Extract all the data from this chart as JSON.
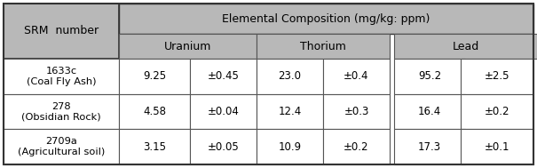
{
  "rows": [
    {
      "srm": "1633c\n(Coal Fly Ash)",
      "uranium": "9.25",
      "u_unc": "±0.45",
      "thorium": "23.0",
      "th_unc": "±0.4",
      "lead": "95.2",
      "pb_unc": "±2.5"
    },
    {
      "srm": "278\n(Obsidian Rock)",
      "uranium": "4.58",
      "u_unc": "±0.04",
      "thorium": "12.4",
      "th_unc": "±0.3",
      "lead": "16.4",
      "pb_unc": "±0.2"
    },
    {
      "srm": "2709a\n(Agricultural soil)",
      "uranium": "3.15",
      "u_unc": "±0.05",
      "thorium": "10.9",
      "th_unc": "±0.2",
      "lead": "17.3",
      "pb_unc": "±0.1"
    }
  ],
  "header1_text": "Elemental Composition (mg/kg: ppm)",
  "srm_header": "SRM  number",
  "subheaders": [
    "Uranium",
    "Thorium",
    "Lead"
  ],
  "header_bg": "#a0a0a0",
  "subheader_bg": "#b8b8b8",
  "row_bg": "#ffffff",
  "outer_border_color": "#333333",
  "inner_border_color": "#555555",
  "text_color": "#000000",
  "font_size": 8.5,
  "header_font_size": 9.0
}
